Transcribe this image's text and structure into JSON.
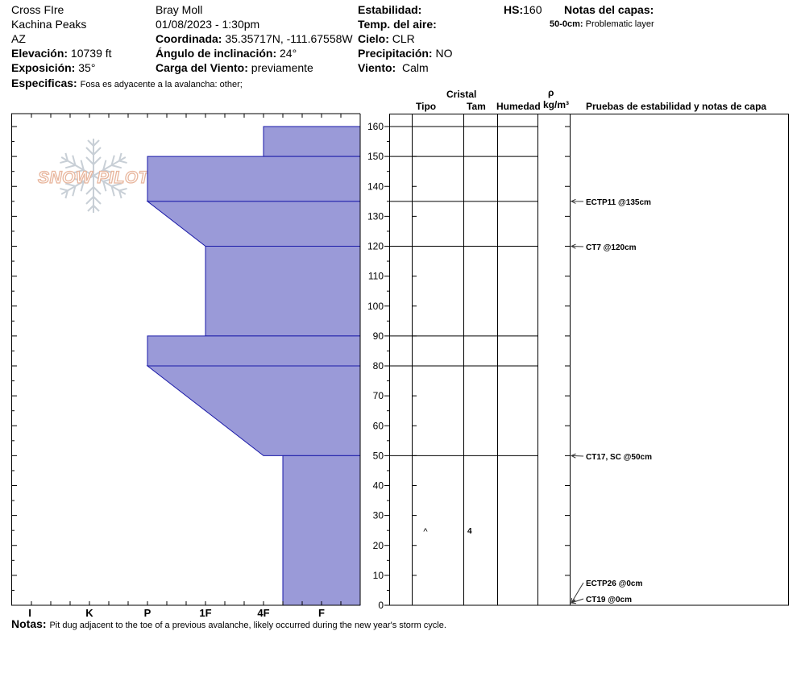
{
  "header": {
    "col1": {
      "pit_name": "Cross FIre",
      "location": "Kachina Peaks",
      "state": "AZ",
      "elevation_label": "Elevación:",
      "elevation_value": "10739 ft",
      "aspect_label": "Exposición:",
      "aspect_value": "35°",
      "specifics_label": "Especificas:",
      "specifics_value": "Fosa es adyacente a la avalancha: other;"
    },
    "col2": {
      "observer": "Bray Moll",
      "datetime": "01/08/2023 - 1:30pm",
      "coord_label": "Coordinada:",
      "coord_value": "35.35717N, -111.67558W",
      "incline_label": "Ángulo de inclinación:",
      "incline_value": "24°",
      "wind_load_label": "Carga del Viento:",
      "wind_load_value": "previamente"
    },
    "col3": {
      "stability_label": "Estabilidad:",
      "air_temp_label": "Temp. del aire:",
      "sky_label": "Cielo:",
      "sky_value": "CLR",
      "precip_label": "Precipitación:",
      "precip_value": "NO",
      "wind_label": "Viento:",
      "wind_value": "Calm"
    },
    "hs_label": "HS:",
    "hs_value": "160",
    "layer_notes_label": "Notas del capas:",
    "layer_note_range": "50-0cm:",
    "layer_note_text": "Problematic layer"
  },
  "logo": {
    "text": "SNOW PILOT"
  },
  "columns": {
    "cristal": "Cristal",
    "tipo": "Tipo",
    "tam": "Tam",
    "humedad": "Humedad",
    "rho": "ρ",
    "density_unit": "kg/m³",
    "tests": "Pruebas de estabilidad y notas de capa"
  },
  "hardness_labels": [
    "I",
    "K",
    "P",
    "1F",
    "4F",
    "F"
  ],
  "depth_ticks": [
    "160",
    "150",
    "140",
    "130",
    "120",
    "110",
    "100",
    "90",
    "80",
    "70",
    "60",
    "50",
    "40",
    "30",
    "20",
    "10",
    "0"
  ],
  "chart_data": {
    "type": "snow-profile",
    "depth_range_cm": [
      0,
      160
    ],
    "hardness_scale": [
      "F",
      "4F",
      "1F",
      "P",
      "K",
      "I"
    ],
    "layers": [
      {
        "top": 160,
        "bottom": 150,
        "hardness_top": "4F",
        "hardness_bottom": "4F"
      },
      {
        "top": 150,
        "bottom": 135,
        "hardness_top": "P",
        "hardness_bottom": "P"
      },
      {
        "top": 135,
        "bottom": 120,
        "hardness_top": "P",
        "hardness_bottom": "1F-"
      },
      {
        "top": 120,
        "bottom": 90,
        "hardness_top": "1F-",
        "hardness_bottom": "1F-"
      },
      {
        "top": 90,
        "bottom": 80,
        "hardness_top": "P",
        "hardness_bottom": "P"
      },
      {
        "top": 80,
        "bottom": 50,
        "hardness_top": "P",
        "hardness_bottom": "4F"
      },
      {
        "top": 50,
        "bottom": 0,
        "hardness_top": "4F-",
        "hardness_bottom": "4F-"
      }
    ],
    "layer_boundaries_cm": [
      160,
      150,
      135,
      120,
      90,
      80,
      50
    ],
    "crystal": {
      "depth": 25,
      "tipo": "^",
      "tam": "4"
    },
    "tests": [
      {
        "label": "ECTP11 @135cm",
        "depth": 135
      },
      {
        "label": "CT7 @120cm",
        "depth": 120
      },
      {
        "label": "CT17, SC @50cm",
        "depth": 50
      },
      {
        "label": "ECTP26 @0cm",
        "depth": 0
      },
      {
        "label": "CT19 @0cm",
        "depth": 0
      }
    ]
  },
  "notes": {
    "label": "Notas:",
    "text": "Pit dug adjacent to the toe of a previous avalanche, likely occurred during the new year's storm cycle."
  }
}
